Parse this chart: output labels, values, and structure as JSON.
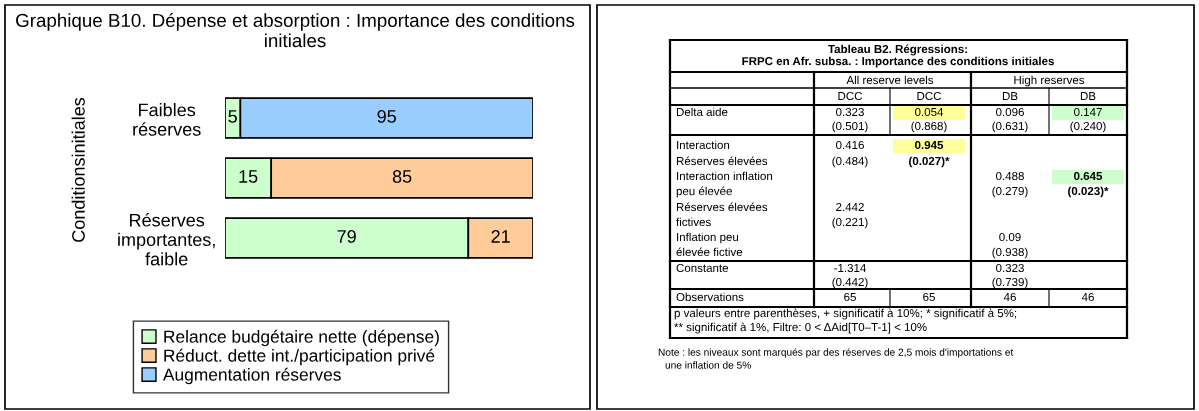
{
  "chart_data": [
    {
      "type": "bar",
      "orientation": "horizontal",
      "stacked": true,
      "title": "Graphique B10. Dépense et absorption : Importance des conditions initiales",
      "ylabel": "Conditionsinitiales",
      "categories": [
        "Faibles\nréserves",
        null,
        "Réserves\nimportantes,\nfaible"
      ],
      "series": [
        {
          "name": "Relance budgétaire nette (dépense)",
          "color": "#ccffcc",
          "values": [
            5,
            15,
            79
          ]
        },
        {
          "name": "Réduct. dette int./participation privé",
          "color": "#ffcc99",
          "values": [
            null,
            85,
            21
          ]
        },
        {
          "name": "Augmentation réserves",
          "color": "#99ccff",
          "values": [
            95,
            null,
            null
          ]
        }
      ],
      "xlim": [
        0,
        100
      ],
      "data_labels": true,
      "legend": "bottom",
      "tick_labels": "y"
    },
    {
      "type": "other",
      "title": "Tableau B2. Régressions:\nFRPC en Afr. subsa. : Importance des conditions initiales",
      "annotations": [
        "All reserve levels",
        "High reserves",
        "DCC",
        "DCC",
        "DB",
        "DB",
        "Delta aide",
        "0.323",
        "0.054",
        "0.096",
        "0.147",
        "(0.501)",
        "(0.868)",
        "(0.631)",
        "(0.240)",
        "Interaction",
        "Réserves élevées",
        "Interaction inflation",
        "peu élevée",
        "Réserves élevées",
        "fictives",
        "Inflation peu",
        "élevée fictive",
        "0.416",
        "(0.484)",
        "0.945",
        "(0.027)*",
        "0.488",
        "(0.279)",
        "0.645",
        "(0.023)*",
        "2.442",
        "(0.221)",
        "0.09",
        "(0.938)",
        "Constante",
        "-1.314",
        "0.323",
        "(0.442)",
        "(0.739)",
        "Observations",
        "65",
        "65",
        "46",
        "46",
        "p valeurs entre parenthèses, + significatif à 10%; * significatif à 5%;",
        "** significatif à 1%, Filtre: 0 < ΔAid[T0–T-1] < 10%",
        "Note : les niveaux sont marqués par des réserves de 2,5 mois d'importations et",
        "une inflation de 5%"
      ]
    }
  ]
}
